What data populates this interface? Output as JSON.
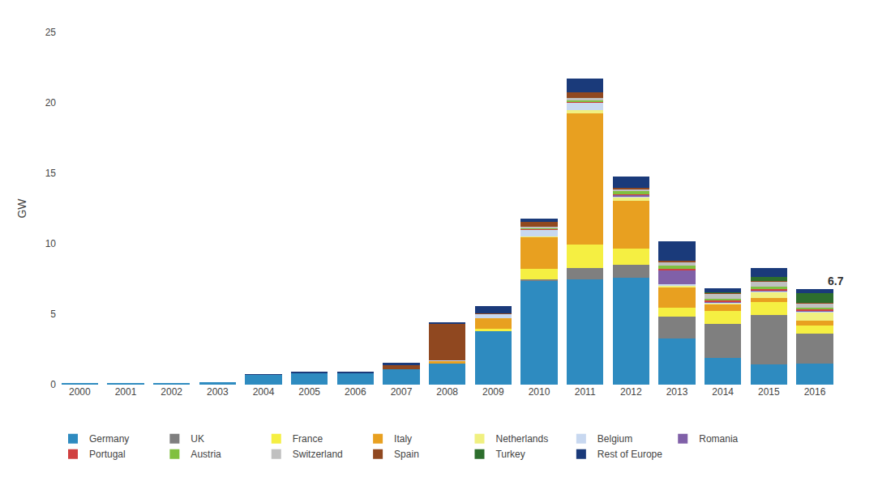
{
  "chart_data": {
    "type": "bar",
    "stacked": true,
    "categories": [
      "2000",
      "2001",
      "2002",
      "2003",
      "2004",
      "2005",
      "2006",
      "2007",
      "2008",
      "2009",
      "2010",
      "2011",
      "2012",
      "2013",
      "2014",
      "2015",
      "2016"
    ],
    "series": [
      {
        "name": "Germany",
        "color": "#2e8bc0",
        "values": [
          0.06,
          0.08,
          0.1,
          0.15,
          0.69,
          0.84,
          0.84,
          1.1,
          1.5,
          3.8,
          7.4,
          7.5,
          7.6,
          3.3,
          1.9,
          1.46,
          1.5
        ]
      },
      {
        "name": "UK",
        "color": "#7f7f7f",
        "values": [
          0.0,
          0.0,
          0.0,
          0.0,
          0.0,
          0.0,
          0.0,
          0.0,
          0.0,
          0.0,
          0.07,
          0.78,
          0.9,
          1.5,
          2.4,
          3.5,
          2.1
        ]
      },
      {
        "name": "France",
        "color": "#f5ef42",
        "values": [
          0.0,
          0.0,
          0.0,
          0.0,
          0.0,
          0.0,
          0.0,
          0.0,
          0.0,
          0.18,
          0.72,
          1.67,
          1.15,
          0.65,
          0.93,
          0.88,
          0.58
        ]
      },
      {
        "name": "Italy",
        "color": "#e8a020",
        "values": [
          0.0,
          0.0,
          0.0,
          0.0,
          0.0,
          0.0,
          0.0,
          0.0,
          0.2,
          0.72,
          2.32,
          9.3,
          3.4,
          1.5,
          0.46,
          0.3,
          0.37
        ]
      },
      {
        "name": "Netherlands",
        "color": "#f0f080",
        "values": [
          0.0,
          0.0,
          0.0,
          0.0,
          0.0,
          0.0,
          0.0,
          0.0,
          0.0,
          0.0,
          0.03,
          0.25,
          0.2,
          0.1,
          0.1,
          0.45,
          0.6
        ]
      },
      {
        "name": "Belgium",
        "color": "#c8d8f0",
        "values": [
          0.0,
          0.0,
          0.0,
          0.0,
          0.0,
          0.0,
          0.0,
          0.0,
          0.05,
          0.3,
          0.42,
          0.52,
          0.14,
          0.06,
          0.06,
          0.05,
          0.06
        ]
      },
      {
        "name": "Romania",
        "color": "#8060a8",
        "values": [
          0.0,
          0.0,
          0.0,
          0.0,
          0.0,
          0.0,
          0.0,
          0.0,
          0.0,
          0.0,
          0.0,
          0.0,
          0.06,
          1.05,
          0.06,
          0.04,
          0.04
        ]
      },
      {
        "name": "Portugal",
        "color": "#d04040",
        "values": [
          0.0,
          0.0,
          0.0,
          0.0,
          0.0,
          0.0,
          0.0,
          0.0,
          0.0,
          0.0,
          0.13,
          0.09,
          0.08,
          0.06,
          0.06,
          0.1,
          0.07
        ]
      },
      {
        "name": "Austria",
        "color": "#80c040",
        "values": [
          0.0,
          0.0,
          0.0,
          0.0,
          0.0,
          0.0,
          0.0,
          0.0,
          0.0,
          0.0,
          0.02,
          0.07,
          0.18,
          0.25,
          0.14,
          0.2,
          0.15
        ]
      },
      {
        "name": "Switzerland",
        "color": "#c0c0c0",
        "values": [
          0.0,
          0.0,
          0.0,
          0.0,
          0.0,
          0.0,
          0.0,
          0.0,
          0.0,
          0.0,
          0.08,
          0.17,
          0.18,
          0.25,
          0.35,
          0.35,
          0.3
        ]
      },
      {
        "name": "Spain",
        "color": "#904820",
        "values": [
          0.0,
          0.0,
          0.0,
          0.0,
          0.0,
          0.0,
          0.0,
          0.3,
          2.6,
          0.07,
          0.37,
          0.38,
          0.1,
          0.1,
          0.05,
          0.05,
          0.04
        ]
      },
      {
        "name": "Turkey",
        "color": "#2d6e2d",
        "values": [
          0.0,
          0.0,
          0.0,
          0.0,
          0.0,
          0.0,
          0.0,
          0.0,
          0.0,
          0.0,
          0.0,
          0.0,
          0.0,
          0.0,
          0.04,
          0.25,
          0.71
        ]
      },
      {
        "name": "Rest of Europe",
        "color": "#1a3a7a",
        "values": [
          0.0,
          0.0,
          0.0,
          0.0,
          0.02,
          0.1,
          0.1,
          0.14,
          0.05,
          0.49,
          0.25,
          1.0,
          0.8,
          1.35,
          0.28,
          0.65,
          0.27
        ]
      }
    ],
    "ylabel": "GW",
    "ylim": [
      0,
      25
    ],
    "yticks": [
      0,
      5,
      10,
      15,
      20,
      25
    ],
    "grid": false,
    "legend": "bottom",
    "annotations": [
      {
        "text": "6.7",
        "x": "2016"
      }
    ]
  }
}
